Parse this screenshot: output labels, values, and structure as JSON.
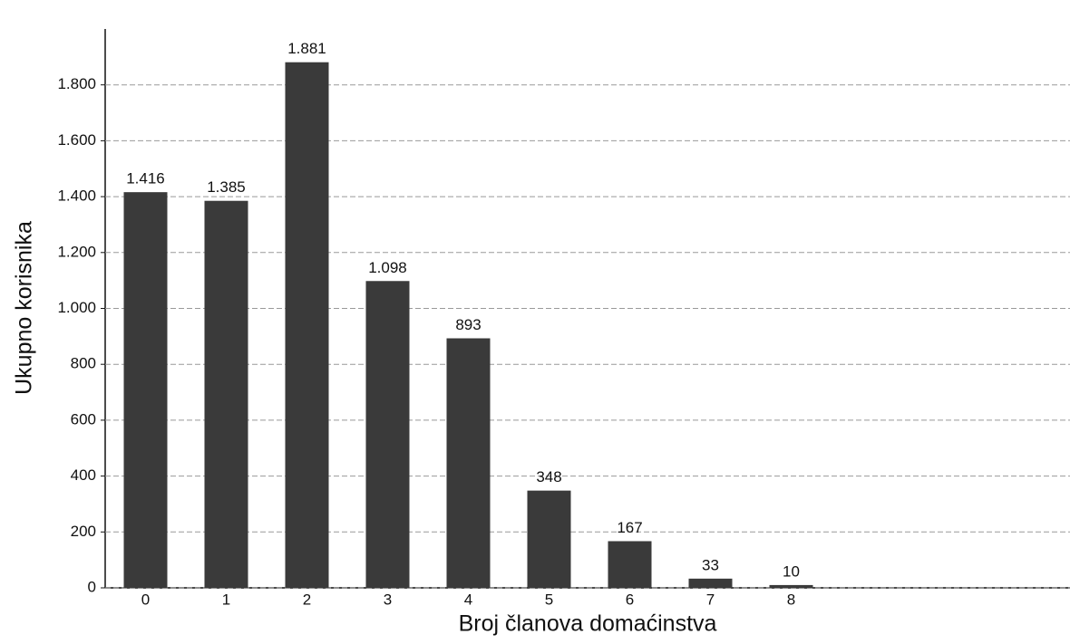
{
  "chart_data": {
    "type": "bar",
    "x_label": "Broj članova domaćinstva",
    "y_label": "Ukupno korisnika",
    "categories": [
      "0",
      "1",
      "2",
      "3",
      "4",
      "5",
      "6",
      "7",
      "8"
    ],
    "values": [
      1416,
      1385,
      1881,
      1098,
      893,
      348,
      167,
      33,
      10
    ],
    "value_labels": [
      "1.416",
      "1.385",
      "1.881",
      "1.098",
      "893",
      "348",
      "167",
      "33",
      "10"
    ],
    "color": "#3a3a3a",
    "ylim": [
      0,
      2000
    ],
    "yticks": [
      0,
      200,
      400,
      600,
      800,
      {
        "value": 1000,
        "label": "1.000"
      },
      {
        "value": 1200,
        "label": "1.200"
      },
      {
        "value": 1400,
        "label": "1.400"
      },
      {
        "value": 1600,
        "label": "1.600"
      },
      {
        "value": 1800,
        "label": "1.800"
      }
    ],
    "grid": true
  }
}
